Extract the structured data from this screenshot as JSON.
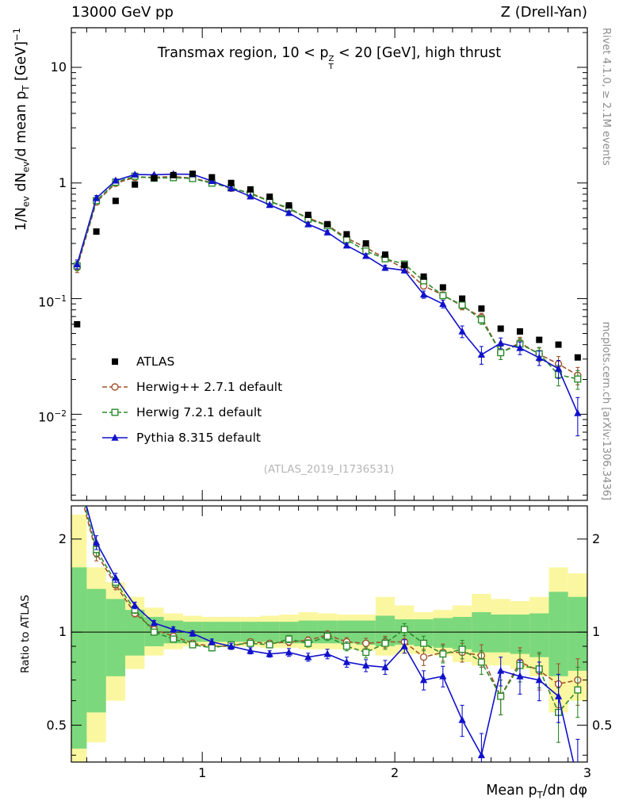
{
  "header": {
    "left": "13000 GeV pp",
    "right": "Z (Drell-Yan)"
  },
  "side_notes": {
    "top": "Rivet 4.1.0, ≥ 2.1M events",
    "bottom": "mcplots.cern.ch [arXiv:1306.3436]"
  },
  "watermark": "(ATLAS_2019_I1736531)",
  "chart_data": {
    "type": "line",
    "title": "Transmax region, 10 < pT^Z < 20 [GeV], high thrust",
    "title_rich": [
      {
        "t": "Transmax region, 10 < p"
      },
      {
        "stack": [
          "Z",
          "T"
        ]
      },
      {
        "t": " < 20 [GeV], high thrust"
      }
    ],
    "ylabel": "1/Nev dNev/d mean pT [GeV]^-1",
    "ylabel_rich": [
      {
        "t": "1/N"
      },
      {
        "sub": "ev"
      },
      {
        "t": " dN"
      },
      {
        "sub": "ev"
      },
      {
        "t": "/d mean p"
      },
      {
        "sub": "T"
      },
      {
        "t": " [GeV]"
      },
      {
        "sup": "−1"
      }
    ],
    "xlabel": "Mean pT/dη dφ",
    "xlabel_rich": [
      {
        "t": "Mean p"
      },
      {
        "sub": "T"
      },
      {
        "t": "/dη dφ"
      }
    ],
    "ratio_label": "Ratio to ATLAS",
    "legend_position": "inside-left",
    "grid": false,
    "xlim": [
      0.32,
      3.0
    ],
    "ylim_main": [
      0.0018,
      22
    ],
    "ylim_ratio": [
      0.38,
      2.56
    ],
    "x_ticks": [
      {
        "v": 1,
        "label": "1"
      },
      {
        "v": 2,
        "label": "2"
      },
      {
        "v": 3,
        "label": "3"
      }
    ],
    "y_ticks_main": [
      {
        "v": 10,
        "base": "10"
      },
      {
        "v": 1,
        "base": "1"
      },
      {
        "v": 0.1,
        "base": "10",
        "sup": "−1"
      },
      {
        "v": 0.01,
        "base": "10",
        "sup": "−2"
      }
    ],
    "y_ticks_ratio": [
      {
        "v": 2,
        "label": "2"
      },
      {
        "v": 1,
        "label": "1"
      },
      {
        "v": 0.5,
        "label": "0.5"
      }
    ],
    "x": [
      0.35,
      0.45,
      0.55,
      0.65,
      0.75,
      0.85,
      0.95,
      1.05,
      1.15,
      1.25,
      1.35,
      1.45,
      1.55,
      1.65,
      1.75,
      1.85,
      1.95,
      2.05,
      2.15,
      2.25,
      2.35,
      2.45,
      2.55,
      2.65,
      2.75,
      2.85,
      2.95
    ],
    "atlas": {
      "name": "ATLAS",
      "color": "#000000",
      "marker": "filled-square",
      "values": [
        0.06,
        0.38,
        0.7,
        0.97,
        1.1,
        1.17,
        1.2,
        1.12,
        1.0,
        0.88,
        0.76,
        0.64,
        0.53,
        0.44,
        0.36,
        0.3,
        0.24,
        0.195,
        0.155,
        0.125,
        0.1,
        0.082,
        0.055,
        0.052,
        0.044,
        0.04,
        0.031
      ]
    },
    "mc_series": [
      {
        "name": "Herwig++ 2.7.1 default",
        "color": "#a0522d",
        "dash": true,
        "marker": "open-circle",
        "ratio": [
          3.1,
          1.8,
          1.42,
          1.15,
          1.02,
          0.97,
          0.92,
          0.9,
          0.9,
          0.93,
          0.92,
          0.93,
          0.94,
          0.98,
          0.93,
          0.92,
          0.93,
          0.93,
          0.83,
          0.86,
          0.86,
          0.84,
          0.62,
          0.8,
          0.75,
          0.68,
          0.7
        ]
      },
      {
        "name": "Herwig 7.2.1 default",
        "color": "#2e8b2e",
        "dash": true,
        "marker": "open-square",
        "ratio": [
          3.2,
          1.85,
          1.45,
          1.18,
          1.0,
          0.95,
          0.91,
          0.89,
          0.91,
          0.92,
          0.91,
          0.95,
          0.92,
          0.97,
          0.9,
          0.86,
          0.92,
          1.02,
          0.92,
          0.85,
          0.88,
          0.8,
          0.62,
          0.78,
          0.76,
          0.55,
          0.65
        ]
      },
      {
        "name": "Pythia 8.315 default",
        "color": "#1111cc",
        "dash": false,
        "marker": "filled-triangle",
        "ratio": [
          3.3,
          1.95,
          1.5,
          1.22,
          1.07,
          1.02,
          0.99,
          0.93,
          0.9,
          0.87,
          0.85,
          0.86,
          0.83,
          0.85,
          0.8,
          0.78,
          0.77,
          0.9,
          0.7,
          0.72,
          0.52,
          0.4,
          0.75,
          0.72,
          0.7,
          0.62,
          0.33
        ]
      }
    ],
    "ratio_err": [
      0.3,
      0.1,
      0.05,
      0.03,
      0.02,
      0.02,
      0.02,
      0.02,
      0.02,
      0.02,
      0.02,
      0.025,
      0.025,
      0.03,
      0.03,
      0.035,
      0.04,
      0.045,
      0.05,
      0.055,
      0.06,
      0.07,
      0.08,
      0.09,
      0.1,
      0.11,
      0.12
    ],
    "bands": {
      "yellow_color": "#fbf7a0",
      "green_color": "#7cd87c",
      "bin_half_width": 0.05,
      "yellow": [
        [
          0.3,
          2.4
        ],
        [
          0.44,
          1.62
        ],
        [
          0.6,
          1.45
        ],
        [
          0.76,
          1.3
        ],
        [
          0.84,
          1.2
        ],
        [
          0.88,
          1.15
        ],
        [
          0.9,
          1.13
        ],
        [
          0.9,
          1.12
        ],
        [
          0.9,
          1.12
        ],
        [
          0.9,
          1.12
        ],
        [
          0.89,
          1.13
        ],
        [
          0.89,
          1.14
        ],
        [
          0.88,
          1.16
        ],
        [
          0.88,
          1.15
        ],
        [
          0.88,
          1.14
        ],
        [
          0.87,
          1.14
        ],
        [
          0.84,
          1.3
        ],
        [
          0.85,
          1.22
        ],
        [
          0.85,
          1.16
        ],
        [
          0.84,
          1.18
        ],
        [
          0.8,
          1.22
        ],
        [
          0.78,
          1.33
        ],
        [
          0.78,
          1.28
        ],
        [
          0.76,
          1.26
        ],
        [
          0.72,
          1.3
        ],
        [
          0.55,
          1.62
        ],
        [
          0.6,
          1.55
        ]
      ],
      "green": [
        [
          0.42,
          1.62
        ],
        [
          0.55,
          1.38
        ],
        [
          0.72,
          1.28
        ],
        [
          0.84,
          1.18
        ],
        [
          0.9,
          1.12
        ],
        [
          0.92,
          1.09
        ],
        [
          0.93,
          1.08
        ],
        [
          0.93,
          1.08
        ],
        [
          0.93,
          1.08
        ],
        [
          0.93,
          1.08
        ],
        [
          0.93,
          1.08
        ],
        [
          0.92,
          1.08
        ],
        [
          0.92,
          1.09
        ],
        [
          0.92,
          1.09
        ],
        [
          0.92,
          1.09
        ],
        [
          0.91,
          1.09
        ],
        [
          0.9,
          1.13
        ],
        [
          0.91,
          1.1
        ],
        [
          0.9,
          1.1
        ],
        [
          0.89,
          1.11
        ],
        [
          0.88,
          1.12
        ],
        [
          0.86,
          1.16
        ],
        [
          0.86,
          1.14
        ],
        [
          0.85,
          1.14
        ],
        [
          0.83,
          1.15
        ],
        [
          0.72,
          1.35
        ],
        [
          0.75,
          1.3
        ]
      ]
    }
  },
  "legend": {
    "entries": [
      "ATLAS",
      "Herwig++ 2.7.1 default",
      "Herwig 7.2.1 default",
      "Pythia 8.315 default"
    ]
  }
}
